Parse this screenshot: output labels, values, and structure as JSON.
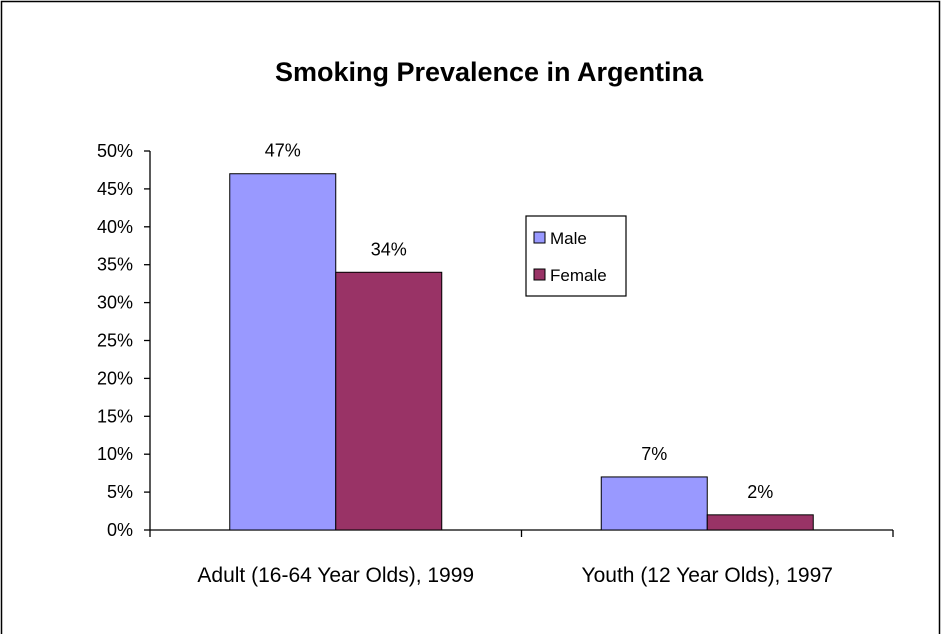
{
  "chart_data": {
    "type": "bar",
    "title": "Smoking Prevalence in Argentina",
    "categories": [
      "Adult (16-64 Year Olds), 1999",
      "Youth (12 Year Olds), 1997"
    ],
    "series": [
      {
        "name": "Male",
        "values": [
          47,
          7
        ],
        "color": "#9999ff",
        "data_labels": [
          "47%",
          "7%"
        ]
      },
      {
        "name": "Female",
        "values": [
          34,
          2
        ],
        "color": "#993366",
        "data_labels": [
          "34%",
          "2%"
        ]
      }
    ],
    "ylim": [
      0,
      50
    ],
    "yticks": [
      0,
      5,
      10,
      15,
      20,
      25,
      30,
      35,
      40,
      45,
      50
    ],
    "ytick_labels": [
      "0%",
      "5%",
      "10%",
      "15%",
      "20%",
      "25%",
      "30%",
      "35%",
      "40%",
      "45%",
      "50%"
    ],
    "grid": false,
    "legend_position": "right-center"
  }
}
